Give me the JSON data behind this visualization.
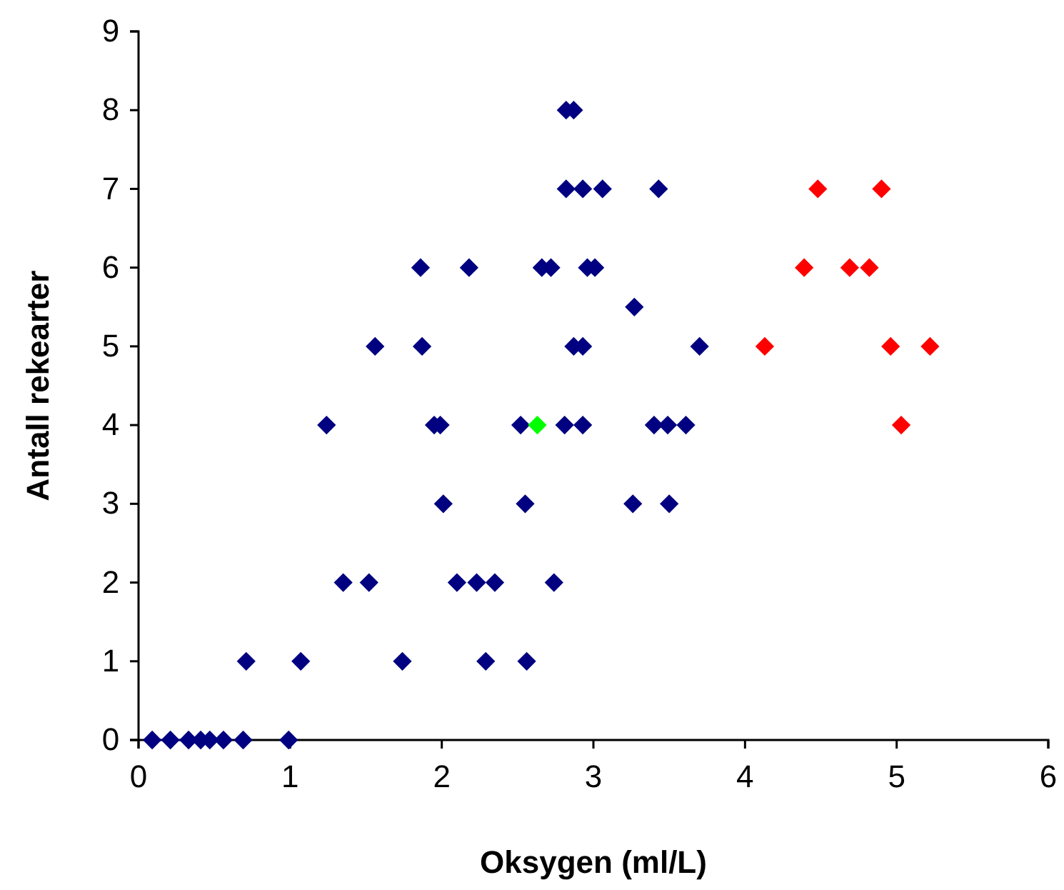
{
  "chart_data": {
    "type": "scatter",
    "xlabel": "Oksygen (ml/L)",
    "ylabel": "Antall rekearter",
    "xlim": [
      0,
      6
    ],
    "xticks": [
      0,
      1,
      2,
      3,
      4,
      5,
      6
    ],
    "ylim": [
      0,
      9
    ],
    "yticks": [
      0,
      1,
      2,
      3,
      4,
      5,
      6,
      7,
      8,
      9
    ],
    "grid": false,
    "marker": "diamond",
    "series": [
      {
        "color": "#000080",
        "x": [
          0.09,
          0.21,
          0.33,
          0.41,
          0.47,
          0.56,
          0.69,
          0.99,
          0.71,
          1.07,
          1.74,
          2.29,
          2.56,
          1.35,
          1.52,
          2.1,
          2.23,
          2.35,
          2.74,
          2.01,
          2.55,
          3.26,
          3.5,
          1.24,
          1.95,
          1.99,
          2.52,
          2.81,
          2.93,
          3.4,
          3.49,
          3.61,
          1.56,
          1.87,
          2.87,
          2.93,
          3.7,
          3.27,
          1.86,
          2.18,
          2.66,
          2.72,
          2.96,
          3.01,
          2.82,
          2.93,
          3.06,
          3.43,
          2.82,
          2.87
        ],
        "values": [
          0,
          0,
          0,
          0,
          0,
          0,
          0,
          0,
          1,
          1,
          1,
          1,
          1,
          2,
          2,
          2,
          2,
          2,
          2,
          3,
          3,
          3,
          3,
          4,
          4,
          4,
          4,
          4,
          4,
          4,
          4,
          4,
          5,
          5,
          5,
          5,
          5,
          5.5,
          6,
          6,
          6,
          6,
          6,
          6,
          7,
          7,
          7,
          7,
          8,
          8
        ]
      },
      {
        "color": "#ff0000",
        "x": [
          5.03,
          4.13,
          4.96,
          5.22,
          4.39,
          4.69,
          4.82,
          4.48,
          4.9
        ],
        "values": [
          4,
          5,
          5,
          5,
          6,
          6,
          6,
          7,
          7
        ]
      },
      {
        "color": "#00ff00",
        "x": [
          2.63
        ],
        "values": [
          4
        ]
      }
    ]
  }
}
